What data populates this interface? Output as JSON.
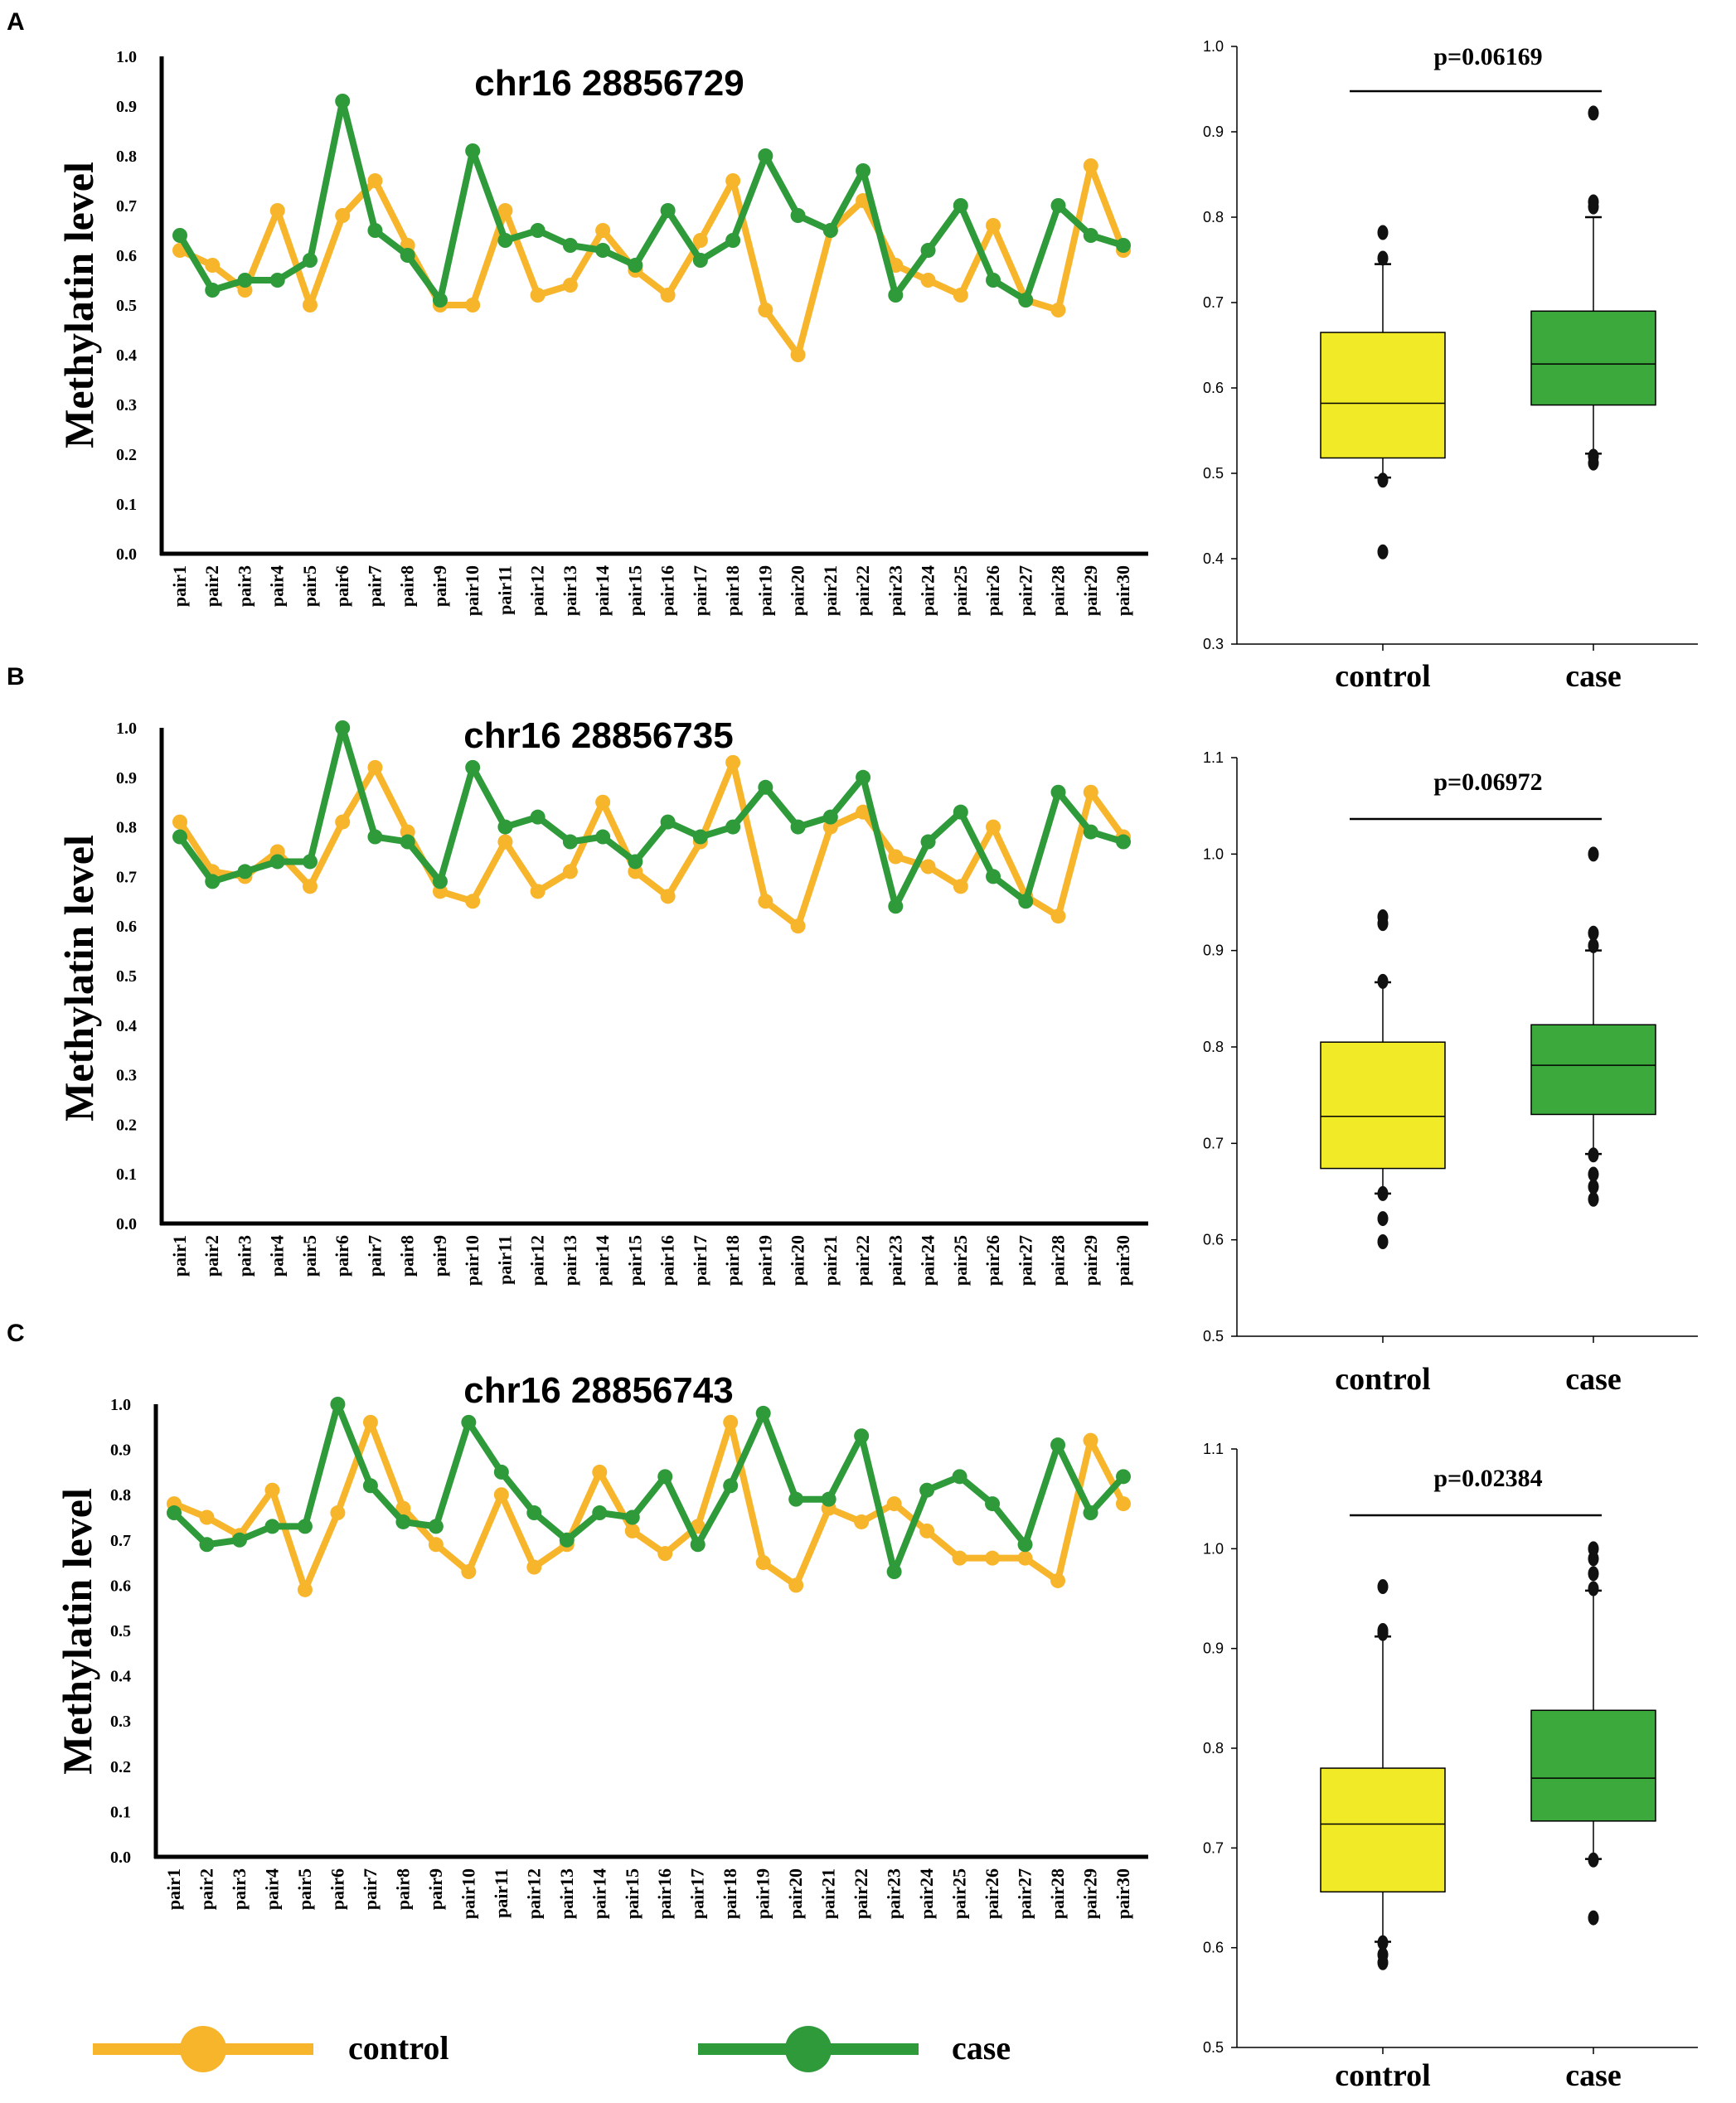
{
  "chart_data": [
    {
      "panel": "A",
      "line": {
        "type": "line",
        "title": "chr16 28856729",
        "ylabel": "Methylatin level",
        "ylim": [
          0,
          1.0
        ],
        "yticks": [
          "0.0",
          "0.1",
          "0.2",
          "0.3",
          "0.4",
          "0.5",
          "0.6",
          "0.7",
          "0.8",
          "0.9",
          "1.0"
        ],
        "categories": [
          "pair1",
          "pair2",
          "pair3",
          "pair4",
          "pair5",
          "pair6",
          "pair7",
          "pair8",
          "pair9",
          "pair10",
          "pair11",
          "pair12",
          "pair13",
          "pair14",
          "pair15",
          "pair16",
          "pair17",
          "pair18",
          "pair19",
          "pair20",
          "pair21",
          "pair22",
          "pair23",
          "pair24",
          "pair25",
          "pair26",
          "pair27",
          "pair28",
          "pair29",
          "pair30"
        ],
        "series": [
          {
            "name": "control",
            "color": "#f7b52c",
            "values": [
              0.61,
              0.58,
              0.53,
              0.69,
              0.5,
              0.68,
              0.75,
              0.62,
              0.5,
              0.5,
              0.69,
              0.52,
              0.54,
              0.65,
              0.57,
              0.52,
              0.63,
              0.75,
              0.49,
              0.4,
              0.65,
              0.71,
              0.58,
              0.55,
              0.52,
              0.66,
              0.51,
              0.49,
              0.78,
              0.61
            ]
          },
          {
            "name": "case",
            "color": "#2e9a3a",
            "values": [
              0.64,
              0.53,
              0.55,
              0.55,
              0.59,
              0.91,
              0.65,
              0.6,
              0.51,
              0.81,
              0.63,
              0.65,
              0.62,
              0.61,
              0.58,
              0.69,
              0.59,
              0.63,
              0.8,
              0.68,
              0.65,
              0.77,
              0.52,
              0.61,
              0.7,
              0.55,
              0.51,
              0.7,
              0.64,
              0.62
            ]
          }
        ]
      },
      "box": {
        "type": "box",
        "pvalue": "p=0.06169",
        "ylim": [
          0.3,
          1.0
        ],
        "yticks": [
          "0.3",
          "0.4",
          "0.5",
          "0.6",
          "0.7",
          "0.8",
          "0.9",
          "1.0"
        ],
        "categories": [
          "control",
          "case"
        ],
        "groups": [
          {
            "name": "control",
            "color": "#f1ea27",
            "q1": 0.518,
            "median": 0.582,
            "q3": 0.665,
            "whisker_low": 0.495,
            "whisker_high": 0.745,
            "outliers": [
              0.408,
              0.492,
              0.752,
              0.782
            ]
          },
          {
            "name": "case",
            "color": "#3ca93c",
            "q1": 0.58,
            "median": 0.628,
            "q3": 0.69,
            "whisker_low": 0.523,
            "whisker_high": 0.8,
            "outliers": [
              0.512,
              0.52,
              0.812,
              0.818,
              0.922
            ]
          }
        ]
      }
    },
    {
      "panel": "B",
      "line": {
        "type": "line",
        "title": "chr16 28856735",
        "ylabel": "Methylatin level",
        "ylim": [
          0,
          1.0
        ],
        "yticks": [
          "0.0",
          "0.1",
          "0.2",
          "0.3",
          "0.4",
          "0.5",
          "0.6",
          "0.7",
          "0.8",
          "0.9",
          "1.0"
        ],
        "categories": [
          "pair1",
          "pair2",
          "pair3",
          "pair4",
          "pair5",
          "pair6",
          "pair7",
          "pair8",
          "pair9",
          "pair10",
          "pair11",
          "pair12",
          "pair13",
          "pair14",
          "pair15",
          "pair16",
          "pair17",
          "pair18",
          "pair19",
          "pair20",
          "pair21",
          "pair22",
          "pair23",
          "pair24",
          "pair25",
          "pair26",
          "pair27",
          "pair28",
          "pair29",
          "pair30"
        ],
        "series": [
          {
            "name": "control",
            "color": "#f7b52c",
            "values": [
              0.81,
              0.71,
              0.7,
              0.75,
              0.68,
              0.81,
              0.92,
              0.79,
              0.67,
              0.65,
              0.77,
              0.67,
              0.71,
              0.85,
              0.71,
              0.66,
              0.77,
              0.93,
              0.65,
              0.6,
              0.8,
              0.83,
              0.74,
              0.72,
              0.68,
              0.8,
              0.66,
              0.62,
              0.87,
              0.78
            ]
          },
          {
            "name": "case",
            "color": "#2e9a3a",
            "values": [
              0.78,
              0.69,
              0.71,
              0.73,
              0.73,
              1.0,
              0.78,
              0.77,
              0.69,
              0.92,
              0.8,
              0.82,
              0.77,
              0.78,
              0.73,
              0.81,
              0.78,
              0.8,
              0.88,
              0.8,
              0.82,
              0.9,
              0.64,
              0.77,
              0.83,
              0.7,
              0.65,
              0.87,
              0.79,
              0.77
            ]
          }
        ]
      },
      "box": {
        "type": "box",
        "pvalue": "p=0.06972",
        "ylim": [
          0.5,
          1.1
        ],
        "yticks": [
          "0.5",
          "0.6",
          "0.7",
          "0.8",
          "0.9",
          "1.0",
          "1.1"
        ],
        "categories": [
          "control",
          "case"
        ],
        "groups": [
          {
            "name": "control",
            "color": "#f1ea27",
            "q1": 0.674,
            "median": 0.728,
            "q3": 0.805,
            "whisker_low": 0.648,
            "whisker_high": 0.867,
            "outliers": [
              0.598,
              0.622,
              0.648,
              0.868,
              0.928,
              0.935
            ]
          },
          {
            "name": "case",
            "color": "#3ca93c",
            "q1": 0.73,
            "median": 0.781,
            "q3": 0.823,
            "whisker_low": 0.689,
            "whisker_high": 0.9,
            "outliers": [
              0.642,
              0.655,
              0.668,
              0.688,
              0.905,
              0.918,
              1.0
            ]
          }
        ]
      }
    },
    {
      "panel": "C",
      "line": {
        "type": "line",
        "title": "chr16 28856743",
        "ylabel": "Methylatin level",
        "ylim": [
          0,
          1.0
        ],
        "yticks": [
          "0.0",
          "0.1",
          "0.2",
          "0.3",
          "0.4",
          "0.5",
          "0.6",
          "0.7",
          "0.8",
          "0.9",
          "1.0"
        ],
        "categories": [
          "pair1",
          "pair2",
          "pair3",
          "pair4",
          "pair5",
          "pair6",
          "pair7",
          "pair8",
          "pair9",
          "pair10",
          "pair11",
          "pair12",
          "pair13",
          "pair14",
          "pair15",
          "pair16",
          "pair17",
          "pair18",
          "pair19",
          "pair20",
          "pair21",
          "pair22",
          "pair23",
          "pair24",
          "pair25",
          "pair26",
          "pair27",
          "pair28",
          "pair29",
          "pair30"
        ],
        "series": [
          {
            "name": "control",
            "color": "#f7b52c",
            "values": [
              0.78,
              0.75,
              0.71,
              0.81,
              0.59,
              0.76,
              0.96,
              0.77,
              0.69,
              0.63,
              0.8,
              0.64,
              0.69,
              0.85,
              0.72,
              0.67,
              0.73,
              0.96,
              0.65,
              0.6,
              0.77,
              0.74,
              0.78,
              0.72,
              0.66,
              0.66,
              0.66,
              0.61,
              0.92,
              0.78
            ]
          },
          {
            "name": "case",
            "color": "#2e9a3a",
            "values": [
              0.76,
              0.69,
              0.7,
              0.73,
              0.73,
              1.0,
              0.82,
              0.74,
              0.73,
              0.96,
              0.85,
              0.76,
              0.7,
              0.76,
              0.75,
              0.84,
              0.69,
              0.82,
              0.98,
              0.79,
              0.79,
              0.93,
              0.63,
              0.81,
              0.84,
              0.78,
              0.69,
              0.91,
              0.76,
              0.84
            ]
          }
        ]
      },
      "box": {
        "type": "box",
        "pvalue": "p=0.02384",
        "ylim": [
          0.5,
          1.1
        ],
        "yticks": [
          "0.5",
          "0.6",
          "0.7",
          "0.8",
          "0.9",
          "1.0",
          "1.1"
        ],
        "categories": [
          "control",
          "case"
        ],
        "groups": [
          {
            "name": "control",
            "color": "#f1ea27",
            "q1": 0.656,
            "median": 0.724,
            "q3": 0.78,
            "whisker_low": 0.606,
            "whisker_high": 0.912,
            "outliers": [
              0.585,
              0.593,
              0.605,
              0.915,
              0.918,
              0.962
            ]
          },
          {
            "name": "case",
            "color": "#3ca93c",
            "q1": 0.727,
            "median": 0.77,
            "q3": 0.838,
            "whisker_low": 0.689,
            "whisker_high": 0.958,
            "outliers": [
              0.63,
              0.688,
              0.96,
              0.975,
              0.99,
              1.0
            ]
          }
        ]
      }
    }
  ],
  "legend": [
    {
      "label": "control",
      "color": "#f7b52c"
    },
    {
      "label": "case",
      "color": "#2e9a3a"
    }
  ]
}
